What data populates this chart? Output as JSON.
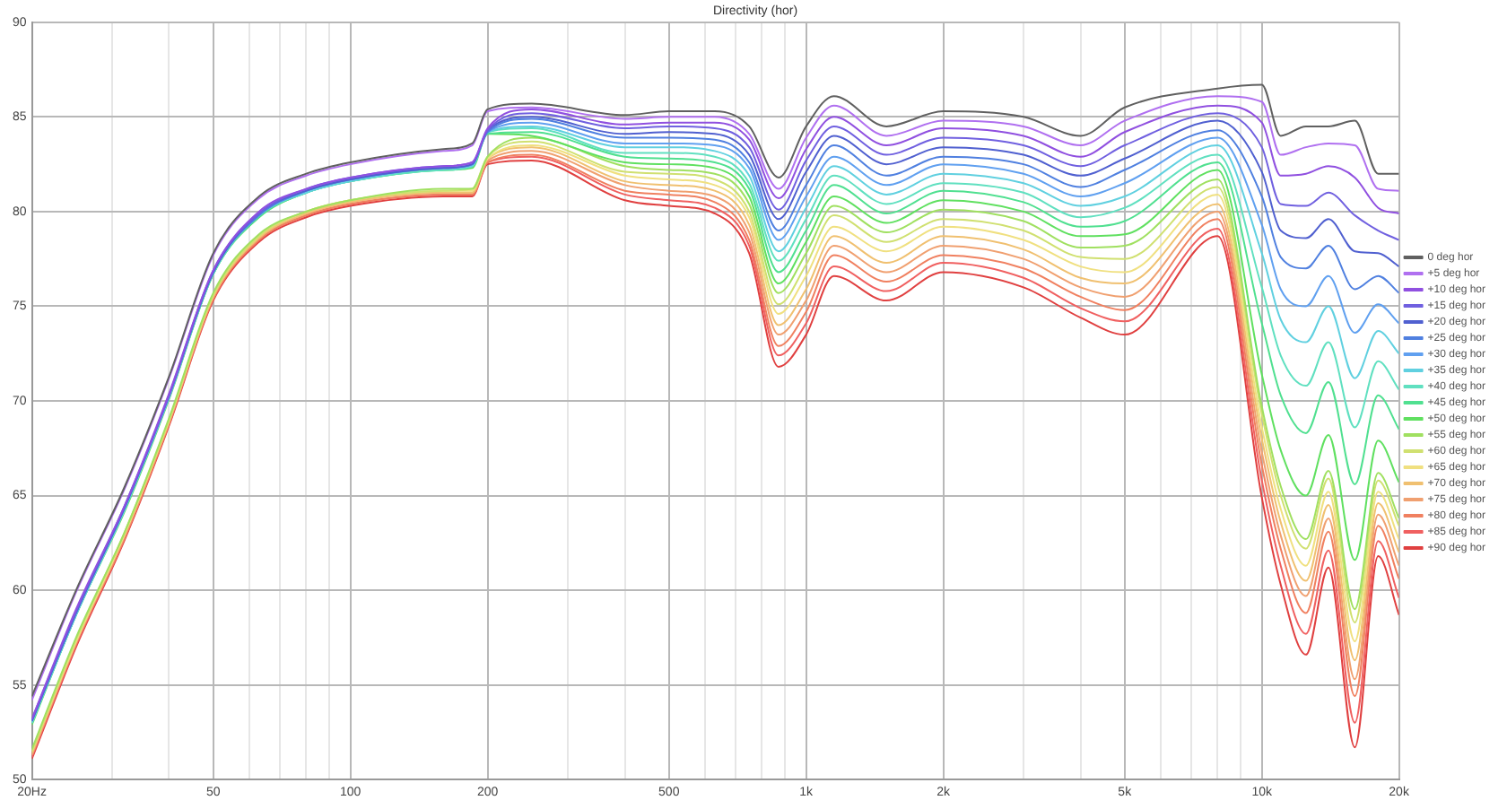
{
  "chart_data": {
    "type": "line",
    "title": "Directivity (hor)",
    "x": [
      20,
      25,
      32,
      40,
      50,
      63,
      80,
      100,
      160,
      185,
      200,
      250,
      400,
      500,
      630,
      750,
      870,
      1000,
      1150,
      1500,
      2000,
      3000,
      4000,
      5000,
      8000,
      10000,
      11000,
      12500,
      14000,
      16000,
      18000,
      20000
    ],
    "xlim": [
      20,
      20000
    ],
    "xticks": [
      {
        "value": 20,
        "label": "20Hz"
      },
      {
        "value": 30,
        "label": null
      },
      {
        "value": 40,
        "label": null
      },
      50,
      {
        "value": 60,
        "label": null
      },
      {
        "value": 70,
        "label": null
      },
      {
        "value": 80,
        "label": null
      },
      {
        "value": 90,
        "label": null
      },
      100,
      200,
      {
        "value": 300,
        "label": null
      },
      {
        "value": 400,
        "label": null
      },
      500,
      {
        "value": 600,
        "label": null
      },
      {
        "value": 700,
        "label": null
      },
      {
        "value": 800,
        "label": null
      },
      {
        "value": 900,
        "label": null
      },
      {
        "value": 1000,
        "label": "1k"
      },
      {
        "value": 2000,
        "label": "2k"
      },
      {
        "value": 3000,
        "label": null
      },
      {
        "value": 4000,
        "label": null
      },
      {
        "value": 5000,
        "label": "5k"
      },
      {
        "value": 6000,
        "label": null
      },
      {
        "value": 7000,
        "label": null
      },
      {
        "value": 8000,
        "label": null
      },
      {
        "value": 9000,
        "label": null
      },
      {
        "value": 10000,
        "label": "10k"
      },
      {
        "value": 20000,
        "label": "20k"
      }
    ],
    "ylim": [
      50,
      90
    ],
    "yticks": [
      50,
      55,
      60,
      65,
      70,
      75,
      80,
      85,
      90
    ],
    "log": "x",
    "grid": true,
    "legend": "right",
    "marker": "none",
    "line_style": "solid",
    "series": [
      {
        "name": "0 deg hor",
        "color": "#606060",
        "values": [
          54.4,
          60,
          65.5,
          71.3,
          77.8,
          80.8,
          82,
          82.6,
          83.3,
          83.6,
          85.4,
          85.7,
          85.1,
          85.3,
          85.3,
          84.5,
          81.8,
          84.5,
          86.1,
          84.5,
          85.3,
          85,
          84,
          85.5,
          86.5,
          86.7,
          84,
          84.5,
          84.5,
          84.8,
          82,
          82
        ]
      },
      {
        "name": "+5 deg hor",
        "color": "#b070f0",
        "values": [
          54.2,
          59.9,
          65.4,
          71.2,
          77.7,
          80.7,
          81.9,
          82.5,
          83.2,
          83.5,
          85.3,
          85.5,
          84.9,
          85,
          85,
          84.1,
          81.2,
          83.9,
          85.6,
          84,
          84.8,
          84.5,
          83.5,
          84.8,
          86.1,
          85.8,
          83,
          83.4,
          83.6,
          83.5,
          81.2,
          81.1
        ]
      },
      {
        "name": "+10 deg hor",
        "color": "#9050e0",
        "values": [
          53.2,
          59,
          64.5,
          70.4,
          76.9,
          80,
          81.2,
          81.8,
          82.4,
          82.6,
          84.4,
          85.4,
          84.6,
          84.7,
          84.7,
          83.8,
          80.7,
          83.3,
          85,
          83.5,
          84.4,
          84,
          82.9,
          84.2,
          85.6,
          84.7,
          81.9,
          82,
          82.4,
          81.8,
          80.2,
          79.9
        ]
      },
      {
        "name": "+15 deg hor",
        "color": "#7060e0",
        "values": [
          53.2,
          58.9,
          64.5,
          70.3,
          76.9,
          79.9,
          81.2,
          81.8,
          82.4,
          82.6,
          84.3,
          85.2,
          84.4,
          84.5,
          84.4,
          83.4,
          80.1,
          82.7,
          84.5,
          83,
          83.9,
          83.5,
          82.4,
          83.5,
          85.2,
          83.4,
          80.4,
          80.3,
          81,
          79.8,
          79,
          78.5
        ]
      },
      {
        "name": "+20 deg hor",
        "color": "#5060d0",
        "values": [
          53.1,
          58.8,
          64.4,
          70.3,
          76.8,
          79.9,
          81.1,
          81.7,
          82.3,
          82.5,
          84.3,
          85,
          84.1,
          84.2,
          84.1,
          83,
          79.6,
          82.1,
          84,
          82.5,
          83.4,
          83,
          81.9,
          82.8,
          84.8,
          82.1,
          79,
          78.6,
          79.6,
          77.9,
          77.8,
          77.1
        ]
      },
      {
        "name": "+25 deg hor",
        "color": "#5080e0",
        "values": [
          53.1,
          58.8,
          64.4,
          70.3,
          76.8,
          79.8,
          81.1,
          81.7,
          82.3,
          82.5,
          84.2,
          84.9,
          83.9,
          83.9,
          83.8,
          82.6,
          79,
          81.4,
          83.5,
          81.9,
          82.9,
          82.5,
          81.3,
          82.2,
          84.3,
          80.8,
          77.6,
          77,
          78.2,
          75.9,
          76.6,
          75.7
        ]
      },
      {
        "name": "+30 deg hor",
        "color": "#60a0f0",
        "values": [
          53.1,
          58.8,
          64.4,
          70.2,
          76.8,
          79.8,
          81.1,
          81.7,
          82.3,
          82.5,
          84.2,
          84.7,
          83.6,
          83.6,
          83.5,
          82.3,
          78.5,
          80.8,
          82.9,
          81.4,
          82.5,
          82,
          80.8,
          81.5,
          83.9,
          79.3,
          75.9,
          75,
          76.6,
          73.6,
          75.1,
          74.1
        ]
      },
      {
        "name": "+35 deg hor",
        "color": "#60d0e0",
        "values": [
          53,
          58.7,
          64.3,
          70.2,
          76.8,
          79.8,
          81,
          81.6,
          82.3,
          82.4,
          84.2,
          84.5,
          83.4,
          83.4,
          83.2,
          81.9,
          77.9,
          80.2,
          82.4,
          80.9,
          82,
          81.5,
          80.3,
          80.8,
          83.5,
          77.8,
          74.3,
          73.1,
          75,
          71.2,
          73.7,
          72.5
        ]
      },
      {
        "name": "+40 deg hor",
        "color": "#60e0c0",
        "values": [
          53,
          58.7,
          64.3,
          70.2,
          76.7,
          79.8,
          81,
          81.6,
          82.2,
          82.4,
          84.2,
          84.4,
          83.1,
          83.1,
          82.9,
          81.5,
          77.4,
          79.6,
          81.9,
          80.4,
          81.5,
          81,
          79.7,
          80.2,
          83,
          76,
          72.4,
          70.8,
          73.1,
          68.6,
          72.1,
          70.6
        ]
      },
      {
        "name": "+45 deg hor",
        "color": "#50e090",
        "values": [
          53,
          58.7,
          64.3,
          70.2,
          76.7,
          79.7,
          81,
          81.6,
          82.2,
          82.4,
          84.1,
          84.2,
          82.9,
          82.8,
          82.6,
          81.2,
          76.8,
          79,
          81.4,
          79.9,
          81.1,
          80.5,
          79.2,
          79.5,
          82.6,
          74.1,
          70.3,
          68.3,
          71,
          65.6,
          70.3,
          68.5
        ]
      },
      {
        "name": "+50 deg hor",
        "color": "#60e060",
        "values": [
          52.9,
          58.7,
          64.2,
          70.1,
          76.7,
          79.7,
          81,
          81.6,
          82.2,
          82.3,
          84.1,
          84,
          82.6,
          82.5,
          82.3,
          80.8,
          76.2,
          78.4,
          80.8,
          79.4,
          80.6,
          80,
          78.7,
          78.8,
          82.2,
          71.4,
          67.4,
          65,
          68.2,
          61.6,
          67.9,
          65.7
        ]
      },
      {
        "name": "+55 deg hor",
        "color": "#a0e060",
        "values": [
          51.6,
          57.5,
          63.1,
          69.1,
          75.7,
          78.8,
          80,
          80.6,
          81.2,
          81.2,
          82.9,
          83.9,
          82.4,
          82.2,
          82,
          80.4,
          75.7,
          77.8,
          80.3,
          78.9,
          80.1,
          79.5,
          78.1,
          78.2,
          81.7,
          69.7,
          65.5,
          62.7,
          66.3,
          59,
          66.2,
          63.8
        ]
      },
      {
        "name": "+60 deg hor",
        "color": "#d0e070",
        "values": [
          51.5,
          57.4,
          63.1,
          69,
          75.6,
          78.7,
          80,
          80.6,
          81.1,
          81.2,
          82.9,
          83.7,
          82.1,
          82,
          81.7,
          80,
          75.1,
          77.2,
          79.8,
          78.4,
          79.6,
          79,
          77.6,
          77.5,
          81.3,
          69.3,
          65,
          62.2,
          65.9,
          58.3,
          65.8,
          63.4
        ]
      },
      {
        "name": "+65 deg hor",
        "color": "#f0e080",
        "values": [
          51.5,
          57.3,
          63,
          69,
          75.6,
          78.7,
          80,
          80.6,
          81.1,
          81.1,
          82.8,
          83.5,
          81.9,
          81.7,
          81.4,
          79.7,
          74.6,
          76.6,
          79.2,
          77.9,
          79.2,
          78.5,
          77.1,
          76.8,
          80.9,
          68.6,
          64.3,
          61.3,
          65.2,
          57.3,
          65.2,
          62.7
        ]
      },
      {
        "name": "+70 deg hor",
        "color": "#f0c070",
        "values": [
          51.4,
          57.3,
          63,
          68.9,
          75.5,
          78.6,
          79.9,
          80.5,
          81,
          81,
          82.8,
          83.4,
          81.6,
          81.4,
          81.1,
          79.3,
          74,
          75.9,
          78.7,
          77.3,
          78.7,
          78,
          76.5,
          76.2,
          80.4,
          68,
          63.6,
          60.5,
          64.5,
          56.3,
          64.6,
          62
        ]
      },
      {
        "name": "+75 deg hor",
        "color": "#f0a070",
        "values": [
          51.3,
          57.2,
          62.9,
          68.9,
          75.5,
          78.6,
          79.9,
          80.5,
          81,
          81,
          82.7,
          83.2,
          81.4,
          81.1,
          80.8,
          78.9,
          73.5,
          75.3,
          78.2,
          76.8,
          78.2,
          77.5,
          76,
          75.5,
          80,
          67.3,
          62.9,
          59.7,
          63.8,
          55.3,
          64,
          61.3
        ]
      },
      {
        "name": "+80 deg hor",
        "color": "#f08060",
        "values": [
          51.3,
          57.2,
          62.8,
          68.8,
          75.4,
          78.5,
          79.8,
          80.4,
          80.9,
          80.9,
          82.6,
          83,
          81.1,
          80.9,
          80.5,
          78.5,
          72.9,
          74.7,
          77.7,
          76.3,
          77.7,
          77,
          75.5,
          74.8,
          79.6,
          66.6,
          62.2,
          58.8,
          63.1,
          54.4,
          63.4,
          60.6
        ]
      },
      {
        "name": "+85 deg hor",
        "color": "#f06060",
        "values": [
          51.2,
          57.1,
          62.8,
          68.8,
          75.4,
          78.5,
          79.8,
          80.4,
          80.9,
          80.9,
          82.6,
          82.9,
          80.9,
          80.6,
          80.2,
          78.2,
          72.4,
          74.1,
          77.1,
          75.8,
          77.3,
          76.5,
          74.9,
          74.2,
          79.1,
          65.8,
          61.3,
          57.7,
          62.1,
          53,
          62.6,
          59.6
        ]
      },
      {
        "name": "+90 deg hor",
        "color": "#e04040",
        "values": [
          51.1,
          57,
          62.7,
          68.7,
          75.3,
          78.4,
          79.7,
          80.3,
          80.8,
          80.8,
          82.5,
          82.7,
          80.6,
          80.3,
          79.9,
          77.8,
          71.8,
          73.5,
          76.6,
          75.3,
          76.8,
          76,
          74.4,
          73.5,
          78.7,
          64.9,
          60.3,
          56.6,
          61.2,
          51.7,
          61.8,
          58.7
        ]
      }
    ]
  }
}
